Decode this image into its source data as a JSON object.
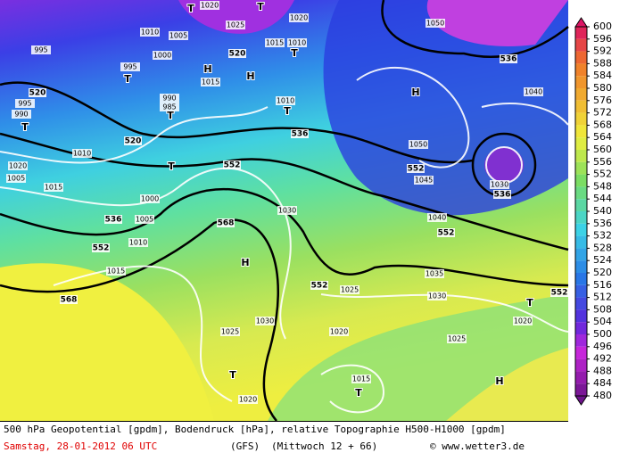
{
  "legend": {
    "ticks": [
      600,
      596,
      592,
      588,
      584,
      580,
      576,
      572,
      568,
      564,
      560,
      556,
      552,
      548,
      544,
      540,
      536,
      532,
      528,
      524,
      520,
      516,
      512,
      508,
      504,
      500,
      496,
      492,
      488,
      484,
      480
    ]
  },
  "footer": {
    "description": "500 hPa Geopotential [gpdm], Bodendruck [hPa], relative Topographie H500-H1000 [gpdm]",
    "date": "Samstag, 28-01-2012  06 UTC",
    "model": "(GFS)",
    "run": "(Mittwoch 12 + 66)",
    "source": "© www.wetter3.de"
  },
  "map": {
    "labels": [
      "1020",
      "1025",
      "520",
      "T",
      "T",
      "1020",
      "1015",
      "1010",
      "T",
      "995",
      "1010",
      "1005",
      "1000",
      "T",
      "995",
      "H",
      "1015",
      "H",
      "536",
      "H",
      "1040",
      "1050",
      "520",
      "995",
      "990",
      "T",
      "990",
      "985",
      "T",
      "1010",
      "T",
      "536",
      "520",
      "1050",
      "552",
      "1045",
      "1030",
      "536",
      "1010",
      "T",
      "552",
      "1020",
      "1005",
      "1015",
      "1000",
      "1030",
      "536",
      "1005",
      "568",
      "1040",
      "552",
      "552",
      "1010",
      "H",
      "1015",
      "1035",
      "552",
      "1025",
      "1030",
      "T",
      "552",
      "568",
      "1030",
      "1020",
      "1020",
      "1025",
      "1025",
      "T",
      "1015",
      "T",
      "H",
      "1020"
    ]
  }
}
